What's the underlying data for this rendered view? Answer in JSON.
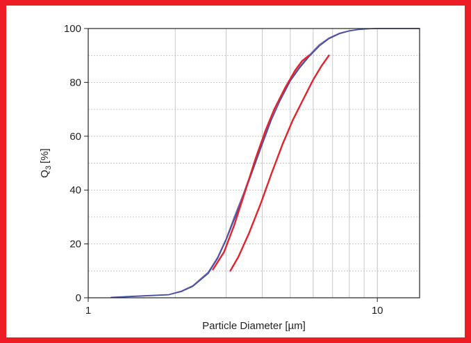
{
  "chart_data": {
    "type": "line",
    "title": "",
    "xlabel": "Particle Diameter [µm]",
    "ylabel_main": "Q",
    "ylabel_sub": "3",
    "ylabel_unit": "[%]",
    "x_scale": "log",
    "xlim": [
      1,
      14
    ],
    "ylim": [
      0,
      100
    ],
    "x_ticks": [
      1,
      10
    ],
    "x_tick_labels": [
      "1",
      "10"
    ],
    "y_ticks": [
      0,
      20,
      40,
      60,
      80,
      100
    ],
    "y_tick_labels": [
      "0",
      "20",
      "40",
      "60",
      "80",
      "100"
    ],
    "grid": true,
    "legend": "none",
    "series": [
      {
        "color": "#7b5fa5",
        "x": [
          1.2,
          1.5,
          1.9,
          2.1,
          2.3,
          2.6,
          2.8,
          3.0,
          3.2,
          3.45,
          3.7,
          4.0,
          4.3,
          4.6,
          5.0,
          5.4,
          5.8,
          6.3,
          6.8,
          7.4,
          8.0,
          8.6,
          9.3,
          10,
          12,
          14
        ],
        "y": [
          0.2,
          0.7,
          1.2,
          2.5,
          4.5,
          9.5,
          15,
          22,
          30,
          39,
          48,
          58,
          67,
          74,
          81,
          86,
          90,
          94,
          96.5,
          98.3,
          99.2,
          99.7,
          99.9,
          100,
          100,
          100
        ]
      },
      {
        "color": "#3a4fa8",
        "x": [
          1.2,
          1.5,
          1.9,
          2.1,
          2.3,
          2.6,
          2.8,
          3.0,
          3.2,
          3.45,
          3.7,
          4.0,
          4.3,
          4.6,
          5.0,
          5.4,
          5.8,
          6.3,
          6.8,
          7.4,
          8.0,
          8.6,
          9.3,
          10,
          12,
          14
        ],
        "y": [
          0.1,
          0.6,
          1.1,
          2.3,
          4.2,
          9,
          14.5,
          21.5,
          29,
          38,
          47,
          57,
          66,
          73,
          80.5,
          85.5,
          89.5,
          93.5,
          96.2,
          98.1,
          99.1,
          99.6,
          99.9,
          100,
          100,
          100
        ]
      },
      {
        "color": "#e8202a",
        "x": [
          2.7,
          2.95,
          3.2,
          3.5,
          3.8,
          4.1,
          4.4,
          4.8,
          5.2,
          5.5,
          5.8
        ],
        "y": [
          10.5,
          17,
          27,
          40,
          52,
          62,
          70,
          78,
          84.5,
          88,
          90
        ]
      },
      {
        "color": "#e8202a",
        "x": [
          3.1,
          3.3,
          3.6,
          3.95,
          4.3,
          4.7,
          5.1,
          5.5,
          6.0,
          6.4,
          6.8
        ],
        "y": [
          10,
          15,
          24,
          35,
          46,
          57,
          66,
          73,
          81,
          86,
          90
        ]
      }
    ]
  }
}
